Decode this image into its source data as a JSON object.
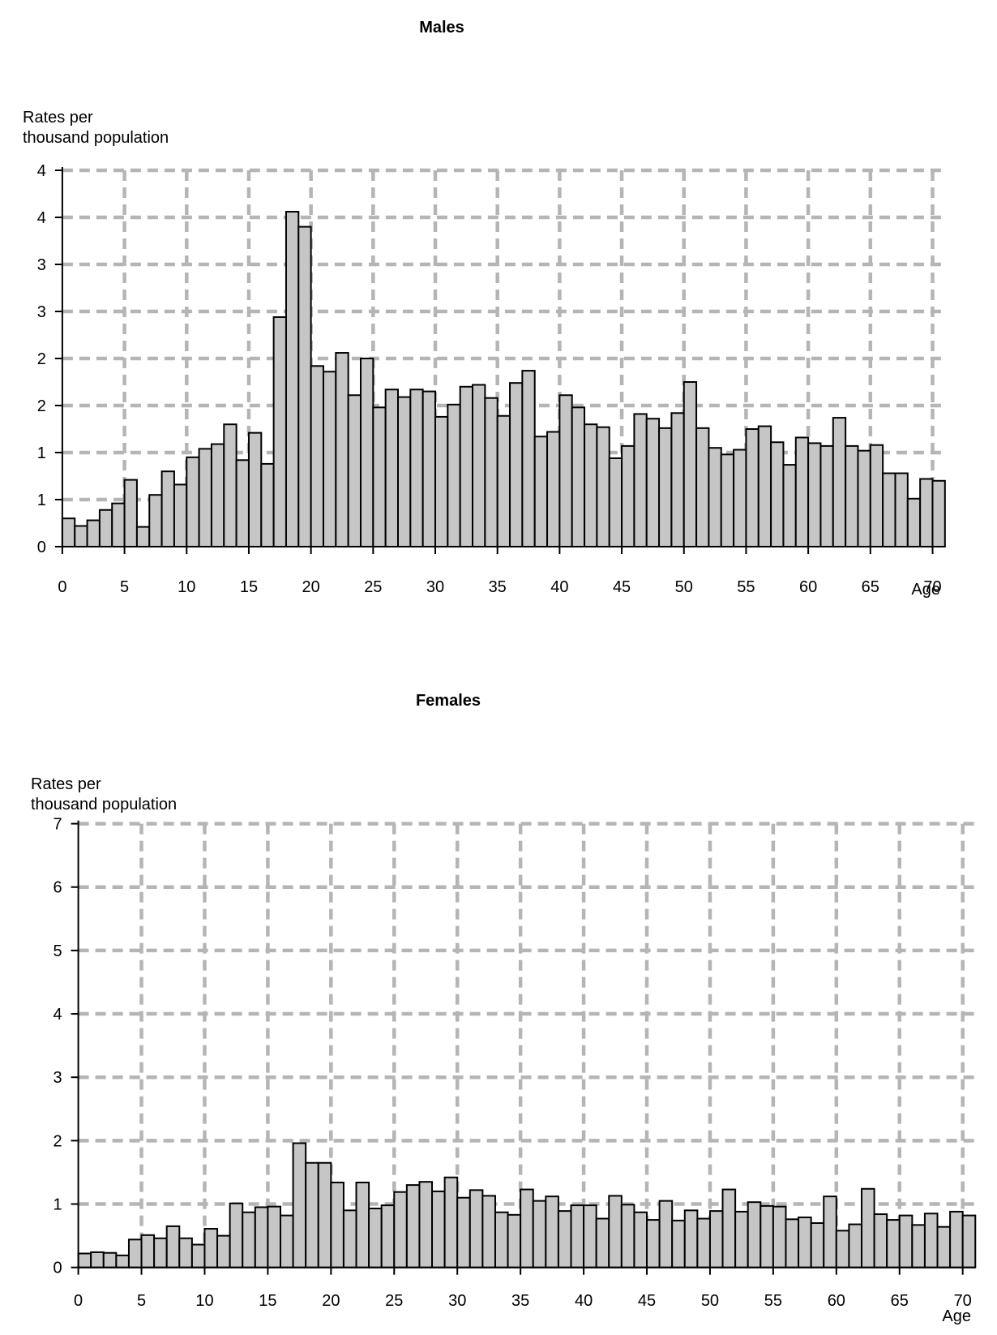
{
  "page": {
    "background": "#ffffff",
    "bar_fill_color": "#c6c6c6",
    "bar_outline_color": "#000000",
    "gridline_color": "#b5b5b5",
    "axis_color": "#000000"
  },
  "charts": [
    {
      "title": "Males",
      "y_caption_line1": "Rates per",
      "y_caption_line2": "thousand population",
      "x_axis_label": "Age"
    },
    {
      "title": "Females",
      "y_caption_line1": "Rates per",
      "y_caption_line2": "thousand population",
      "x_axis_label": "Age"
    }
  ],
  "chart_data": [
    {
      "type": "bar",
      "title": "Males",
      "ylabel": "Rates per thousand population",
      "xlabel": "Age",
      "bin_width_years": 1,
      "age_min": 0,
      "age_max": 70,
      "ylim": [
        0,
        4
      ],
      "y_gridline_step": 0.5,
      "y_tick_labels": [
        "4",
        "4",
        "3",
        "3",
        "2",
        "2",
        "1",
        "1",
        "0"
      ],
      "x_tick_step": 5,
      "x_tick_labels": [
        "0",
        "5",
        "10",
        "15",
        "20",
        "25",
        "30",
        "35",
        "40",
        "45",
        "50",
        "55",
        "60",
        "65",
        "70"
      ],
      "grid": "dashed",
      "legend": "none",
      "values": [
        0.3,
        0.22,
        0.28,
        0.39,
        0.46,
        0.71,
        0.21,
        0.55,
        0.8,
        0.66,
        0.95,
        1.04,
        1.09,
        1.3,
        0.92,
        1.21,
        0.88,
        2.44,
        3.56,
        3.4,
        1.92,
        1.86,
        2.06,
        1.61,
        2.0,
        1.48,
        1.67,
        1.59,
        1.67,
        1.65,
        1.38,
        1.51,
        1.7,
        1.72,
        1.58,
        1.39,
        1.74,
        1.87,
        1.17,
        1.22,
        1.61,
        1.48,
        1.3,
        1.27,
        0.94,
        1.07,
        1.41,
        1.36,
        1.26,
        1.42,
        1.75,
        1.26,
        1.05,
        0.98,
        1.03,
        1.25,
        1.28,
        1.11,
        0.87,
        1.16,
        1.1,
        1.07,
        1.37,
        1.07,
        1.02,
        1.08,
        0.78,
        0.78,
        0.51,
        0.72,
        0.7
      ]
    },
    {
      "type": "bar",
      "title": "Females",
      "ylabel": "Rates per thousand population",
      "xlabel": "Age",
      "bin_width_years": 1,
      "age_min": 0,
      "age_max": 70,
      "ylim": [
        0,
        7
      ],
      "y_gridline_step": 1,
      "y_tick_labels": [
        "7",
        "6",
        "5",
        "4",
        "3",
        "2",
        "1",
        "0"
      ],
      "x_tick_step": 5,
      "x_tick_labels": [
        "0",
        "5",
        "10",
        "15",
        "20",
        "25",
        "30",
        "35",
        "40",
        "45",
        "50",
        "55",
        "60",
        "65",
        "70"
      ],
      "grid": "dashed",
      "legend": "none",
      "values": [
        0.22,
        0.24,
        0.23,
        0.19,
        0.44,
        0.51,
        0.46,
        0.65,
        0.46,
        0.36,
        0.61,
        0.5,
        1.01,
        0.87,
        0.95,
        0.96,
        0.82,
        1.96,
        1.65,
        1.65,
        1.34,
        0.9,
        1.34,
        0.93,
        0.98,
        1.19,
        1.3,
        1.35,
        1.2,
        1.42,
        1.1,
        1.22,
        1.13,
        0.87,
        0.83,
        1.23,
        1.05,
        1.12,
        0.89,
        0.98,
        0.98,
        0.77,
        1.13,
        0.99,
        0.87,
        0.75,
        1.05,
        0.74,
        0.9,
        0.77,
        0.89,
        1.23,
        0.88,
        1.03,
        0.97,
        0.96,
        0.76,
        0.79,
        0.7,
        1.12,
        0.58,
        0.68,
        1.24,
        0.84,
        0.75,
        0.82,
        0.67,
        0.85,
        0.64,
        0.88,
        0.82
      ]
    }
  ]
}
